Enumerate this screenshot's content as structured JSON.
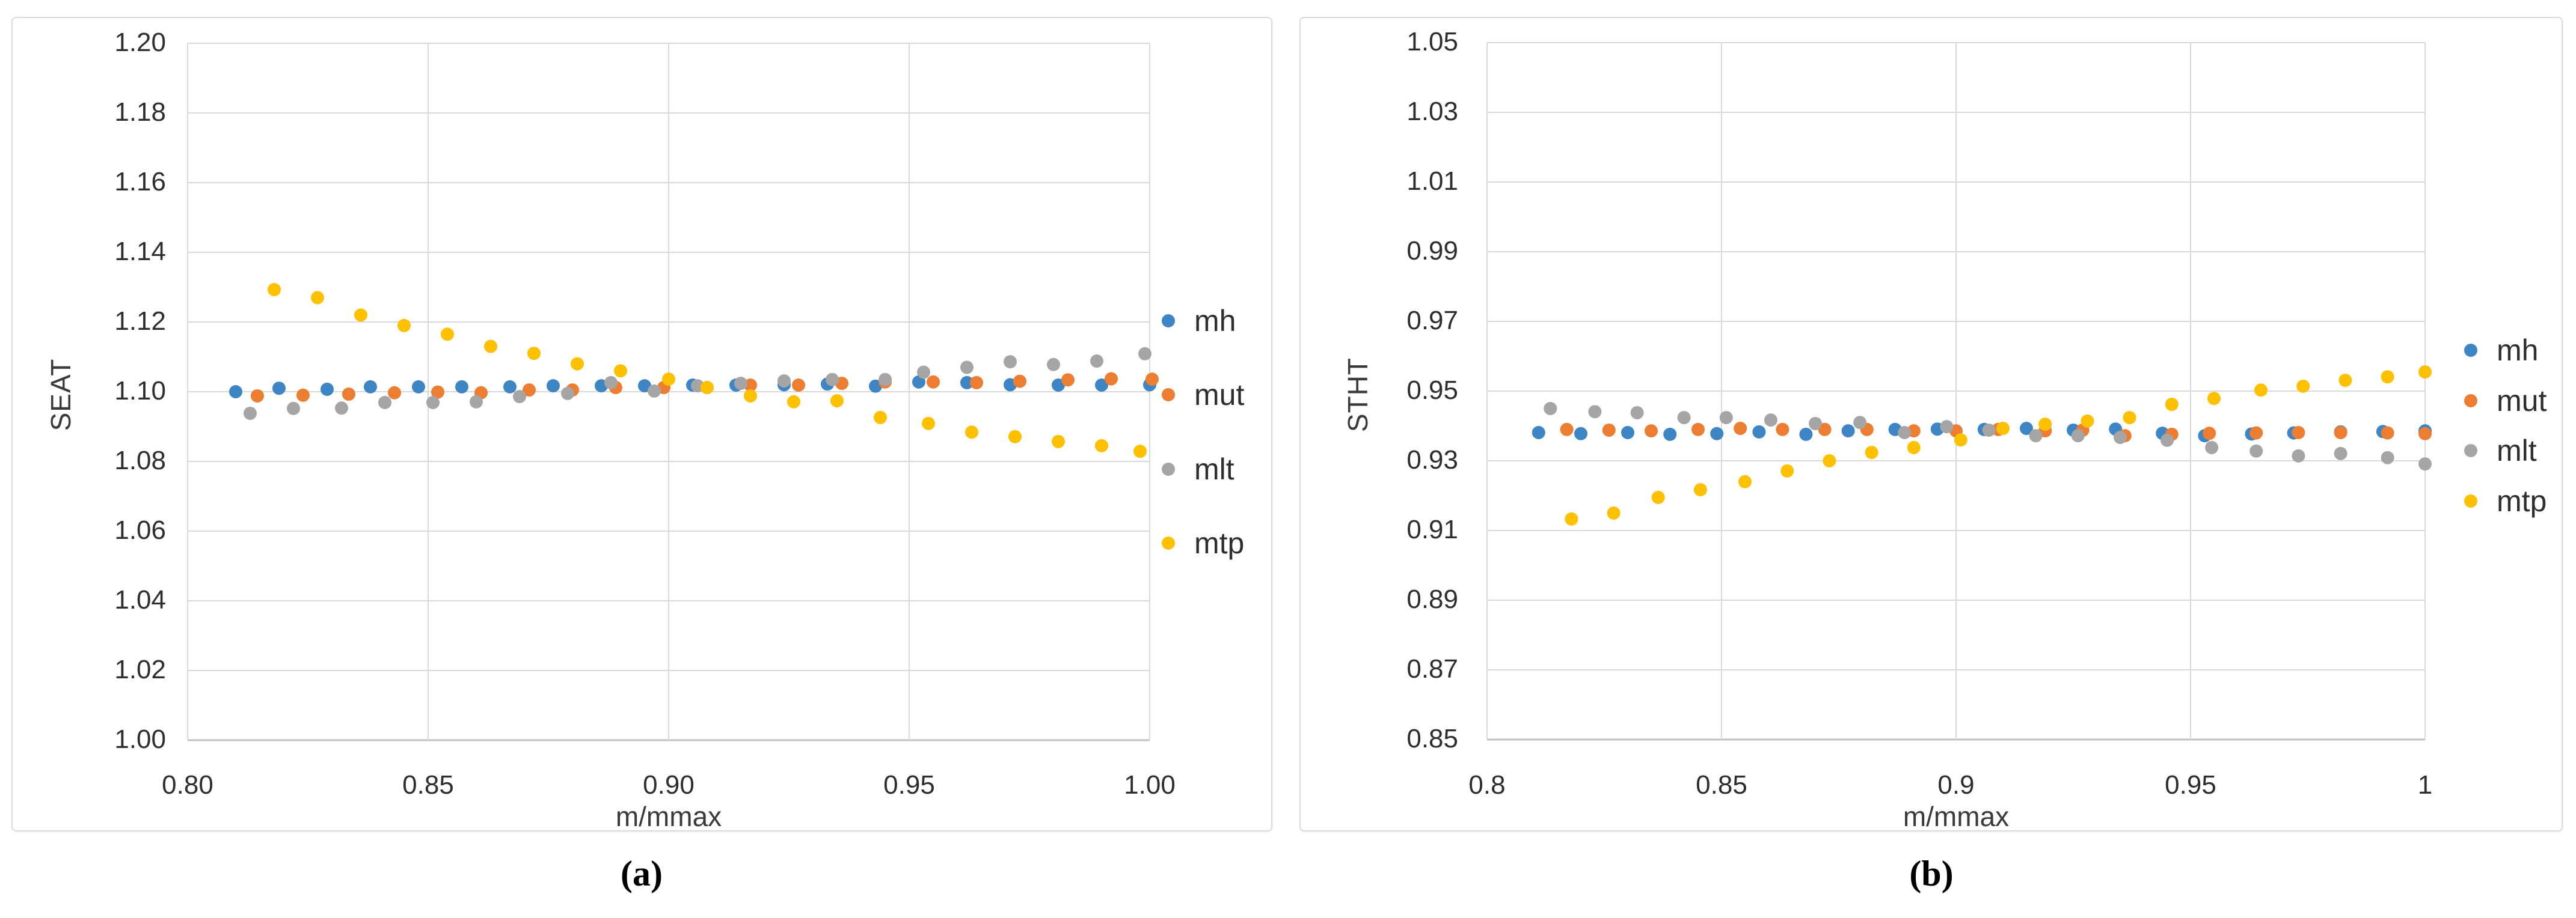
{
  "figure": {
    "background": "#ffffff",
    "captions": {
      "a": "(a)",
      "b": "(b)"
    }
  },
  "colors": {
    "mh": "#3E85C6",
    "mut": "#ED7D31",
    "mlt": "#A5A5A5",
    "mtp": "#FFC000",
    "gridline": "#D9D9D9",
    "axis_line": "#BFBFBF",
    "tick_text": "#2E2E2E",
    "panel_border": "#DBDBDB"
  },
  "legend_labels": [
    "mh",
    "mut",
    "mlt",
    "mtp"
  ],
  "chart_data": [
    {
      "type": "scatter",
      "title": "",
      "xlabel": "m/mmax",
      "ylabel": "SEAT",
      "caption": "(a)",
      "xlim": [
        0.8,
        1.0
      ],
      "ylim": [
        1.0,
        1.2
      ],
      "grid": true,
      "legend_position": "right",
      "x_ticks": [
        {
          "v": 0.8,
          "label": "0.80"
        },
        {
          "v": 0.85,
          "label": "0.85"
        },
        {
          "v": 0.9,
          "label": "0.90"
        },
        {
          "v": 0.95,
          "label": "0.95"
        },
        {
          "v": 1.0,
          "label": "1.00"
        }
      ],
      "y_ticks": [
        {
          "v": 1.0,
          "label": "1.00"
        },
        {
          "v": 1.02,
          "label": "1.02"
        },
        {
          "v": 1.04,
          "label": "1.04"
        },
        {
          "v": 1.06,
          "label": "1.06"
        },
        {
          "v": 1.08,
          "label": "1.08"
        },
        {
          "v": 1.1,
          "label": "1.10"
        },
        {
          "v": 1.12,
          "label": "1.12"
        },
        {
          "v": 1.14,
          "label": "1.14"
        },
        {
          "v": 1.16,
          "label": "1.16"
        },
        {
          "v": 1.18,
          "label": "1.18"
        },
        {
          "v": 1.2,
          "label": "1.20"
        }
      ],
      "series": [
        {
          "name": "mh",
          "x": [
            0.81,
            0.819,
            0.829,
            0.838,
            0.848,
            0.857,
            0.867,
            0.876,
            0.886,
            0.895,
            0.905,
            0.914,
            0.924,
            0.933,
            0.943,
            0.952,
            0.962,
            0.971,
            0.981,
            0.99,
            1.0
          ],
          "y": [
            1.1,
            1.101,
            1.1007,
            1.1014,
            1.1014,
            1.1014,
            1.1014,
            1.1017,
            1.1017,
            1.1017,
            1.1019,
            1.1019,
            1.102,
            1.1022,
            1.1016,
            1.1028,
            1.1026,
            1.102,
            1.1019,
            1.1019,
            1.102
          ]
        },
        {
          "name": "mut",
          "x": [
            0.8145,
            0.824,
            0.8335,
            0.843,
            0.852,
            0.861,
            0.871,
            0.88,
            0.889,
            0.899,
            0.908,
            0.917,
            0.927,
            0.936,
            0.945,
            0.955,
            0.964,
            0.973,
            0.983,
            0.992,
            1.0005
          ],
          "y": [
            1.0988,
            1.099,
            1.0993,
            1.0997,
            1.0999,
            1.0997,
            1.1005,
            1.1005,
            1.1012,
            1.1012,
            1.1012,
            1.1019,
            1.1019,
            1.1024,
            1.1028,
            1.1028,
            1.1026,
            1.103,
            1.1034,
            1.1037,
            1.1036
          ]
        },
        {
          "name": "mlt",
          "x": [
            0.813,
            0.822,
            0.832,
            0.841,
            0.851,
            0.86,
            0.869,
            0.879,
            0.888,
            0.897,
            0.906,
            0.915,
            0.924,
            0.934,
            0.945,
            0.953,
            0.962,
            0.971,
            0.98,
            0.989,
            0.999
          ],
          "y": [
            1.0938,
            1.0952,
            1.0953,
            1.0969,
            1.0969,
            1.0971,
            1.0986,
            1.0995,
            1.1026,
            1.1002,
            1.1017,
            1.1024,
            1.1031,
            1.1035,
            1.1035,
            1.1056,
            1.107,
            1.1086,
            1.1078,
            1.1088,
            1.1109
          ]
        },
        {
          "name": "mtp",
          "x": [
            0.818,
            0.827,
            0.836,
            0.845,
            0.854,
            0.863,
            0.872,
            0.881,
            0.89,
            0.9,
            0.908,
            0.917,
            0.926,
            0.935,
            0.944,
            0.954,
            0.963,
            0.972,
            0.981,
            0.99,
            0.998
          ],
          "y": [
            1.1293,
            1.127,
            1.122,
            1.119,
            1.1165,
            1.113,
            1.111,
            1.108,
            1.106,
            1.1036,
            1.1012,
            1.0988,
            1.0971,
            1.0974,
            1.0926,
            1.0909,
            1.0884,
            1.0871,
            1.0857,
            1.0845,
            1.0829
          ]
        }
      ]
    },
    {
      "type": "scatter",
      "title": "",
      "xlabel": "m/mmax",
      "ylabel": "STHT",
      "caption": "(b)",
      "xlim": [
        0.8,
        1.0
      ],
      "ylim": [
        0.85,
        1.05
      ],
      "grid": true,
      "legend_position": "right",
      "x_ticks": [
        {
          "v": 0.8,
          "label": "0.8"
        },
        {
          "v": 0.85,
          "label": "0.85"
        },
        {
          "v": 0.9,
          "label": "0.9"
        },
        {
          "v": 0.95,
          "label": "0.95"
        },
        {
          "v": 1.0,
          "label": "1"
        }
      ],
      "y_ticks": [
        {
          "v": 0.85,
          "label": "0.85"
        },
        {
          "v": 0.87,
          "label": "0.87"
        },
        {
          "v": 0.89,
          "label": "0.89"
        },
        {
          "v": 0.91,
          "label": "0.91"
        },
        {
          "v": 0.93,
          "label": "0.93"
        },
        {
          "v": 0.95,
          "label": "0.95"
        },
        {
          "v": 0.97,
          "label": "0.97"
        },
        {
          "v": 0.99,
          "label": "0.99"
        },
        {
          "v": 1.01,
          "label": "1.01"
        },
        {
          "v": 1.03,
          "label": "1.03"
        },
        {
          "v": 1.05,
          "label": "1.05"
        }
      ],
      "series": [
        {
          "name": "mh",
          "x": [
            0.811,
            0.82,
            0.83,
            0.839,
            0.849,
            0.858,
            0.868,
            0.877,
            0.887,
            0.896,
            0.906,
            0.915,
            0.925,
            0.934,
            0.944,
            0.953,
            0.963,
            0.972,
            0.982,
            0.991,
            1.0
          ],
          "y": [
            0.9381,
            0.9378,
            0.9381,
            0.9376,
            0.9378,
            0.9383,
            0.9376,
            0.9386,
            0.939,
            0.9391,
            0.939,
            0.9393,
            0.9388,
            0.9391,
            0.9379,
            0.9372,
            0.9377,
            0.938,
            0.9383,
            0.9384,
            0.9386
          ]
        },
        {
          "name": "mut",
          "x": [
            0.817,
            0.826,
            0.835,
            0.845,
            0.854,
            0.863,
            0.872,
            0.881,
            0.891,
            0.9,
            0.909,
            0.919,
            0.927,
            0.936,
            0.946,
            0.954,
            0.964,
            0.973,
            0.982,
            0.992,
            1.0
          ],
          "y": [
            0.939,
            0.9388,
            0.9386,
            0.939,
            0.9393,
            0.939,
            0.939,
            0.939,
            0.9386,
            0.9386,
            0.939,
            0.9386,
            0.9388,
            0.9372,
            0.9376,
            0.9379,
            0.938,
            0.9381,
            0.9381,
            0.938,
            0.9378
          ]
        },
        {
          "name": "mlt",
          "x": [
            0.8135,
            0.823,
            0.832,
            0.842,
            0.851,
            0.8605,
            0.87,
            0.8795,
            0.889,
            0.898,
            0.907,
            0.917,
            0.926,
            0.935,
            0.945,
            0.9545,
            0.964,
            0.973,
            0.982,
            0.992,
            1.0
          ],
          "y": [
            0.945,
            0.9441,
            0.9438,
            0.9424,
            0.9424,
            0.9417,
            0.9407,
            0.941,
            0.9381,
            0.9398,
            0.9388,
            0.9372,
            0.9372,
            0.9367,
            0.9359,
            0.9338,
            0.9328,
            0.9314,
            0.9321,
            0.9309,
            0.9291
          ]
        },
        {
          "name": "mtp",
          "x": [
            0.818,
            0.827,
            0.8365,
            0.8455,
            0.855,
            0.864,
            0.873,
            0.882,
            0.891,
            0.901,
            0.91,
            0.919,
            0.928,
            0.937,
            0.946,
            0.955,
            0.965,
            0.974,
            0.983,
            0.992,
            1.0
          ],
          "y": [
            0.9133,
            0.915,
            0.9195,
            0.9217,
            0.924,
            0.9271,
            0.93,
            0.9324,
            0.9338,
            0.936,
            0.9393,
            0.9405,
            0.9414,
            0.9424,
            0.9462,
            0.9479,
            0.9503,
            0.9514,
            0.9531,
            0.9541,
            0.9555
          ]
        }
      ]
    }
  ]
}
